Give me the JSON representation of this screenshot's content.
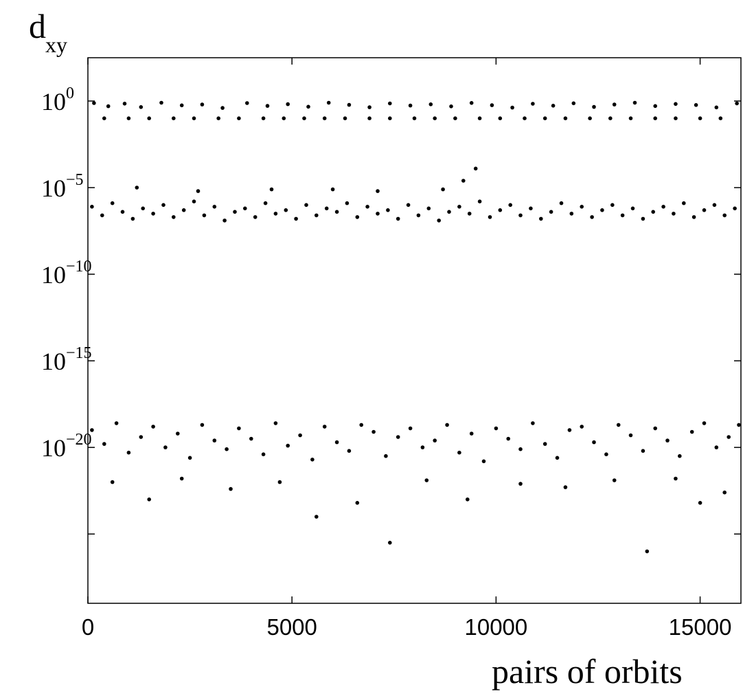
{
  "chart_data": {
    "type": "scatter",
    "title": "",
    "ylabel_main": "d",
    "ylabel_sub": "xy",
    "xlabel": "pairs of orbits",
    "xlim": [
      0,
      16000
    ],
    "ylim_exponent": [
      -29,
      2.5
    ],
    "y_scale": "log10",
    "grid": false,
    "legend": "none",
    "x_ticks": [
      {
        "value": 0,
        "label": "0"
      },
      {
        "value": 5000,
        "label": "5000"
      },
      {
        "value": 10000,
        "label": "10000"
      },
      {
        "value": 15000,
        "label": "15000"
      }
    ],
    "y_ticks": [
      {
        "exponent": 0,
        "base": "10",
        "exp_label": "0"
      },
      {
        "exponent": -5,
        "base": "10",
        "exp_label": "−5"
      },
      {
        "exponent": -10,
        "base": "10",
        "exp_label": "−10"
      },
      {
        "exponent": -15,
        "base": "10",
        "exp_label": "−15"
      },
      {
        "exponent": -20,
        "base": "10",
        "exp_label": "−20"
      },
      {
        "exponent": -25,
        "base": "",
        "exp_label": ""
      }
    ],
    "marker_color": "#000000",
    "series": [
      {
        "x": [
          150,
          500,
          900,
          1300,
          1800,
          2300,
          2800,
          3300,
          3900,
          4400,
          4900,
          5400,
          5900,
          6400,
          6900,
          7400,
          7900,
          8400,
          8900,
          9400,
          9900,
          10400,
          10900,
          11400,
          11900,
          12400,
          12900,
          13400,
          13900,
          14400,
          14900,
          15400,
          15900
        ],
        "log10_y": [
          -0.12,
          -0.3,
          -0.15,
          -0.35,
          -0.1,
          -0.25,
          -0.2,
          -0.4,
          -0.12,
          -0.28,
          -0.18,
          -0.33,
          -0.1,
          -0.22,
          -0.36,
          -0.14,
          -0.26,
          -0.19,
          -0.31,
          -0.11,
          -0.24,
          -0.38,
          -0.16,
          -0.27,
          -0.13,
          -0.34,
          -0.2,
          -0.1,
          -0.29,
          -0.17,
          -0.23,
          -0.37,
          -0.14
        ]
      },
      {
        "x": [
          400,
          1000,
          1500,
          2100,
          2600,
          3200,
          3700,
          4300,
          4800,
          5300,
          5800,
          6300,
          6900,
          7400,
          8000,
          8500,
          9000,
          9600,
          10100,
          10700,
          11200,
          11700,
          12300,
          12800,
          13300,
          13900,
          14400,
          15000,
          15500
        ],
        "log10_y": [
          -1.0,
          -1.0,
          -1.0,
          -1.0,
          -1.0,
          -1.0,
          -1.0,
          -1.0,
          -1.0,
          -1.0,
          -1.0,
          -1.0,
          -1.0,
          -1.0,
          -1.0,
          -1.0,
          -1.0,
          -1.0,
          -1.0,
          -1.0,
          -1.0,
          -1.0,
          -1.0,
          -1.0,
          -1.0,
          -1.0,
          -1.0,
          -1.0,
          -1.0
        ]
      },
      {
        "x": [
          100,
          350,
          600,
          850,
          1100,
          1350,
          1600,
          1850,
          2100,
          2350,
          2600,
          2850,
          3100,
          3350,
          3600,
          3850,
          4100,
          4350,
          4600,
          4850,
          5100,
          5350,
          5600,
          5850,
          6100,
          6350,
          6600,
          6850,
          7100,
          7350,
          7600,
          7850,
          8100,
          8350,
          8600,
          8850,
          9100,
          9350,
          9600,
          9850,
          10100,
          10350,
          10600,
          10850,
          11100,
          11350,
          11600,
          11850,
          12100,
          12350,
          12600,
          12850,
          13100,
          13350,
          13600,
          13850,
          14100,
          14350,
          14600,
          14850,
          15100,
          15350,
          15600,
          15850,
          1200,
          2700,
          4500,
          6000,
          7100,
          8700,
          9200,
          9500
        ],
        "log10_y": [
          -6.1,
          -6.6,
          -5.9,
          -6.4,
          -6.8,
          -6.2,
          -6.5,
          -6.0,
          -6.7,
          -6.3,
          -5.8,
          -6.6,
          -6.1,
          -6.9,
          -6.4,
          -6.2,
          -6.7,
          -5.9,
          -6.5,
          -6.3,
          -6.8,
          -6.0,
          -6.6,
          -6.2,
          -6.4,
          -5.9,
          -6.7,
          -6.1,
          -6.5,
          -6.3,
          -6.8,
          -6.0,
          -6.6,
          -6.2,
          -6.9,
          -6.4,
          -6.1,
          -6.5,
          -5.8,
          -6.7,
          -6.3,
          -6.0,
          -6.6,
          -6.2,
          -6.8,
          -6.4,
          -5.9,
          -6.5,
          -6.1,
          -6.7,
          -6.3,
          -6.0,
          -6.6,
          -6.2,
          -6.8,
          -6.4,
          -6.1,
          -6.5,
          -5.9,
          -6.7,
          -6.3,
          -6.0,
          -6.6,
          -6.2,
          -5.0,
          -5.2,
          -5.1,
          -5.1,
          -5.2,
          -5.1,
          -4.6,
          -3.9
        ]
      },
      {
        "x": [
          100,
          400,
          700,
          1000,
          1300,
          1600,
          1900,
          2200,
          2500,
          2800,
          3100,
          3400,
          3700,
          4000,
          4300,
          4600,
          4900,
          5200,
          5500,
          5800,
          6100,
          6400,
          6700,
          7000,
          7300,
          7600,
          7900,
          8200,
          8500,
          8800,
          9100,
          9400,
          9700,
          10000,
          10300,
          10600,
          10900,
          11200,
          11500,
          11800,
          12100,
          12400,
          12700,
          13000,
          13300,
          13600,
          13900,
          14200,
          14500,
          14800,
          15100,
          15400,
          15700,
          15950,
          600,
          1500,
          2300,
          3500,
          4700,
          5600,
          6600,
          7400,
          8300,
          9300,
          10600,
          11700,
          12900,
          13700,
          14400,
          15000,
          15600
        ],
        "log10_y": [
          -19.0,
          -19.8,
          -18.6,
          -20.3,
          -19.4,
          -18.8,
          -20.0,
          -19.2,
          -20.6,
          -18.7,
          -19.6,
          -20.1,
          -18.9,
          -19.5,
          -20.4,
          -18.6,
          -19.9,
          -19.3,
          -20.7,
          -18.8,
          -19.7,
          -20.2,
          -18.7,
          -19.1,
          -20.5,
          -19.4,
          -18.9,
          -20.0,
          -19.6,
          -18.7,
          -20.3,
          -19.2,
          -20.8,
          -18.9,
          -19.5,
          -20.1,
          -18.6,
          -19.8,
          -20.6,
          -19.0,
          -18.8,
          -19.7,
          -20.4,
          -18.7,
          -19.3,
          -20.2,
          -18.9,
          -19.6,
          -20.5,
          -19.1,
          -18.6,
          -20.0,
          -19.4,
          -18.7,
          -22.0,
          -23.0,
          -21.8,
          -22.4,
          -22.0,
          -24.0,
          -23.2,
          -25.5,
          -21.9,
          -23.0,
          -22.1,
          -22.3,
          -21.9,
          -26.0,
          -21.8,
          -23.2,
          -22.6
        ]
      }
    ]
  }
}
